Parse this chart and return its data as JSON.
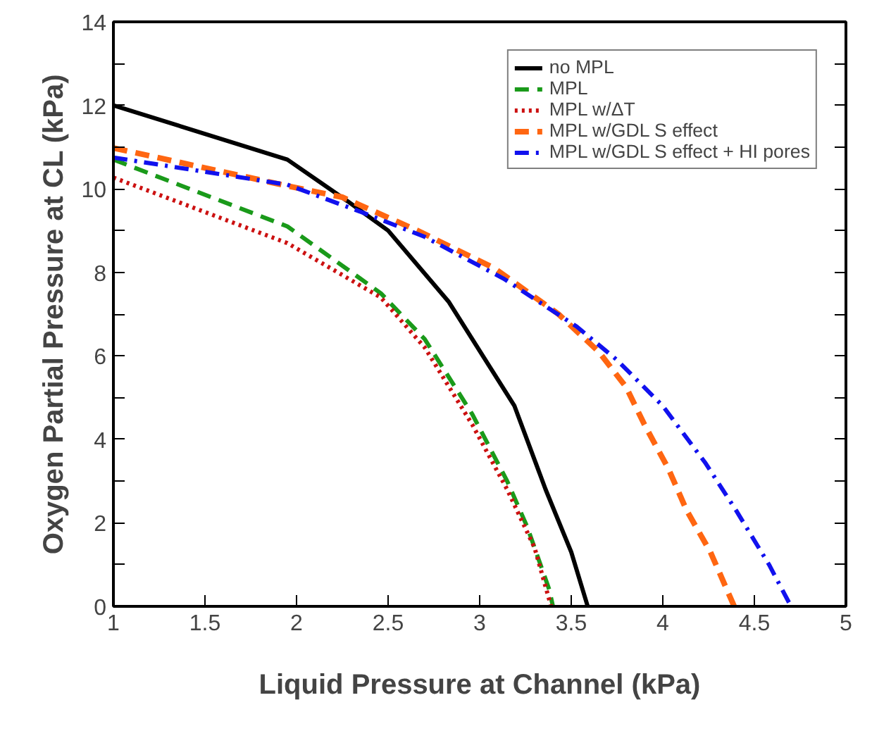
{
  "chart_data": {
    "type": "line",
    "xlabel": "Liquid Pressure at Channel (kPa)",
    "ylabel": "Oxygen Partial Pressure at CL (kPa)",
    "xlim": [
      1,
      5
    ],
    "ylim": [
      0,
      14
    ],
    "xticks": [
      1,
      1.5,
      2,
      2.5,
      3,
      3.5,
      4,
      4.5,
      5
    ],
    "yticks": [
      0,
      {
        "value": 1,
        "label": null
      },
      2,
      {
        "value": 3,
        "label": null
      },
      4,
      {
        "value": 5,
        "label": null
      },
      6,
      {
        "value": 7,
        "label": null
      },
      8,
      {
        "value": 9,
        "label": null
      },
      10,
      {
        "value": 11,
        "label": null
      },
      12,
      {
        "value": 13,
        "label": null
      },
      14
    ],
    "grid": false,
    "legend": "top right",
    "series": [
      {
        "name": "no MPL",
        "color": "#000000",
        "line_style": "solid",
        "x": [
          1,
          1.95,
          2.28,
          2.5,
          2.83,
          3.19,
          3.36,
          3.5,
          3.59
        ],
        "values": [
          12.0,
          10.7,
          9.7,
          9.0,
          7.3,
          4.8,
          2.8,
          1.3,
          0
        ]
      },
      {
        "name": "MPL",
        "color": "#1a9a1a",
        "line_style": "dashed",
        "x": [
          1,
          1.95,
          2.46,
          2.7,
          2.96,
          3.15,
          3.26,
          3.38,
          3.4
        ],
        "values": [
          10.7,
          9.1,
          7.5,
          6.4,
          4.6,
          3.0,
          1.9,
          0.4,
          0
        ]
      },
      {
        "name": "MPL w/ΔT",
        "color": "#cc1111",
        "line_style": "dotted",
        "x": [
          1,
          1.95,
          2.46,
          2.7,
          2.96,
          3.15,
          3.3,
          3.39
        ],
        "values": [
          10.27,
          8.7,
          7.4,
          6.2,
          4.35,
          2.8,
          1.4,
          0
        ]
      },
      {
        "name": "MPL w/GDL S effect",
        "color": "#ff6611",
        "line_style": "dashed",
        "x": [
          1,
          1.95,
          2.25,
          2.66,
          3.08,
          3.43,
          3.65,
          3.8,
          3.9,
          4.03,
          4.13,
          4.26,
          4.39
        ],
        "values": [
          10.98,
          10.07,
          9.8,
          9.0,
          8.1,
          7.0,
          6.1,
          5.25,
          4.35,
          3.3,
          2.3,
          1.3,
          0
        ]
      },
      {
        "name": "MPL w/GDL S effect + HI pores",
        "color": "#1111ee",
        "line_style": "dashdot",
        "x": [
          1,
          1.95,
          2.35,
          2.7,
          3.13,
          3.53,
          3.75,
          4.0,
          4.23,
          4.4,
          4.58,
          4.7
        ],
        "values": [
          10.75,
          10.1,
          9.45,
          8.85,
          7.85,
          6.7,
          5.9,
          4.8,
          3.45,
          2.3,
          1.0,
          0
        ]
      }
    ]
  }
}
